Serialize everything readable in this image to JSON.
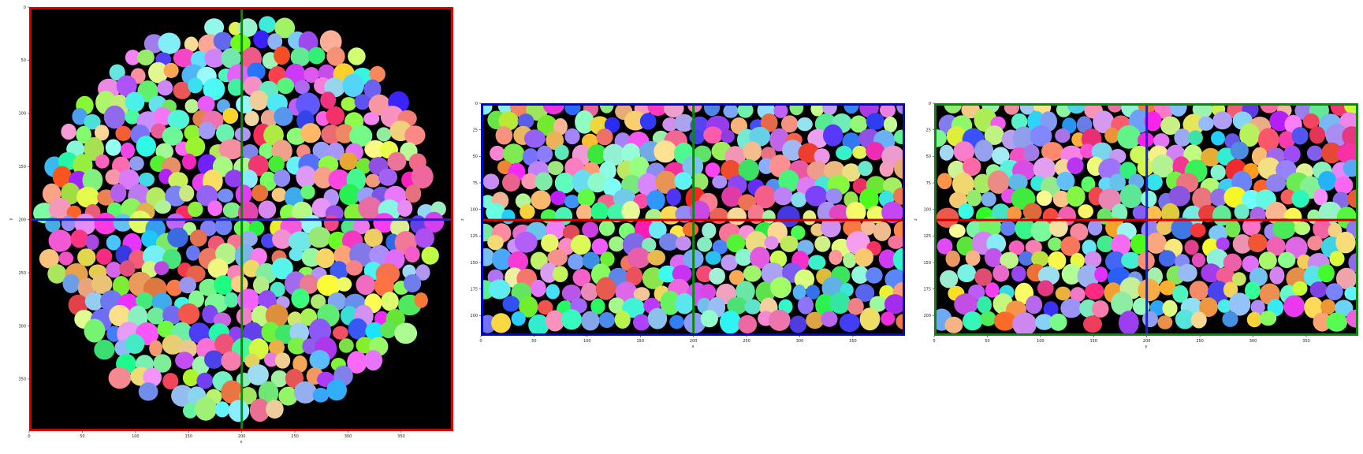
{
  "colors": {
    "background": "#000000",
    "red": "#d40000",
    "blue": "#0008c8",
    "green": "#00aa00"
  },
  "panels": [
    {
      "id": "xy",
      "frame_color": "#d40000",
      "h_line_color": "#1a23d8",
      "v_line_color": "#0a8a0a",
      "crosshair": {
        "x": 200,
        "y": 200
      },
      "x_range": [
        0,
        399
      ],
      "y_range": [
        399,
        0
      ],
      "x_ticks": [
        0,
        50,
        100,
        150,
        200,
        250,
        300,
        350
      ],
      "y_ticks": [
        0,
        50,
        100,
        150,
        200,
        250,
        300,
        350
      ],
      "x_label": "x",
      "y_label": "y",
      "shape": "circle",
      "seed": 11
    },
    {
      "id": "xz",
      "frame_color": "#0008c8",
      "h_line_color": "#d40000",
      "v_line_color": "#0a8a0a",
      "crosshair": {
        "x": 200,
        "y": 110
      },
      "x_range": [
        0,
        399
      ],
      "y_range": [
        219,
        0
      ],
      "x_ticks": [
        0,
        50,
        100,
        150,
        200,
        250,
        300,
        350
      ],
      "y_ticks": [
        0,
        25,
        50,
        75,
        100,
        125,
        150,
        175,
        200
      ],
      "x_label": "x",
      "y_label": "z",
      "shape": "rect",
      "seed": 23
    },
    {
      "id": "yz",
      "frame_color": "#0a8a0a",
      "h_line_color": "#d40000",
      "v_line_color": "#1a23d8",
      "crosshair": {
        "x": 200,
        "y": 110
      },
      "x_range": [
        0,
        399
      ],
      "y_range": [
        219,
        0
      ],
      "x_ticks": [
        0,
        50,
        100,
        150,
        200,
        250,
        300,
        350
      ],
      "y_ticks": [
        0,
        25,
        50,
        75,
        100,
        125,
        150,
        175,
        200
      ],
      "x_label": "y",
      "y_label": "z",
      "shape": "rect",
      "seed": 37
    }
  ]
}
